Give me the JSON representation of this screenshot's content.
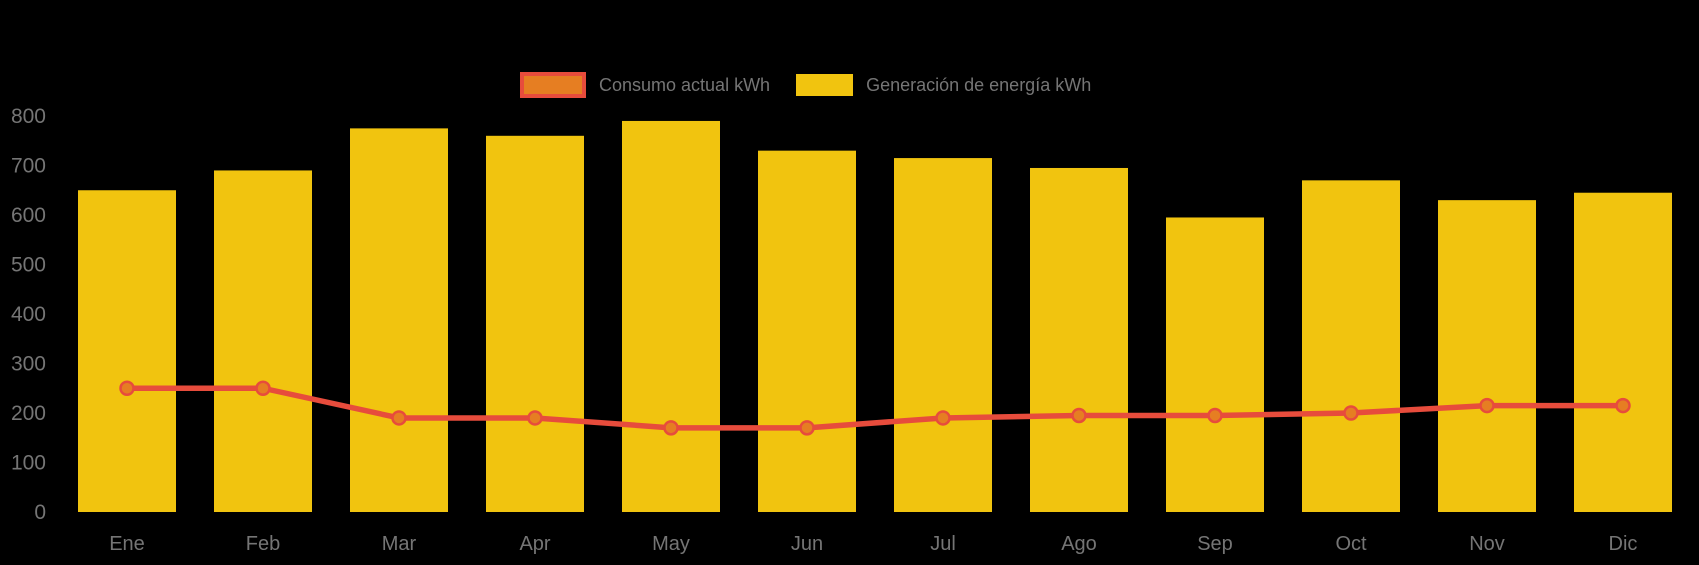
{
  "legend": {
    "consumo_label": "Consumo actual kWh",
    "generacion_label": "Generación de energía kWh"
  },
  "colors": {
    "bar_fill": "#f1c40f",
    "line_stroke": "#e74c3c",
    "marker_fill": "#e67e22",
    "marker_stroke": "#e74c3c",
    "axis_text": "#757575",
    "background": "#000000"
  },
  "chart_data": {
    "type": "bar+line",
    "title": "",
    "xlabel": "",
    "ylabel": "",
    "categories": [
      "Ene",
      "Feb",
      "Mar",
      "Apr",
      "May",
      "Jun",
      "Jul",
      "Ago",
      "Sep",
      "Oct",
      "Nov",
      "Dic"
    ],
    "series": [
      {
        "name": "Consumo actual kWh",
        "type": "line",
        "color": "#e74c3c",
        "marker_color": "#e67e22",
        "values": [
          250,
          250,
          190,
          190,
          170,
          170,
          190,
          195,
          195,
          200,
          215,
          215
        ]
      },
      {
        "name": "Generación de energía kWh",
        "type": "bar",
        "color": "#f1c40f",
        "values": [
          650,
          690,
          775,
          760,
          790,
          730,
          715,
          695,
          595,
          670,
          630,
          645
        ]
      }
    ],
    "ylim": [
      0,
      800
    ],
    "ytick_step": 100,
    "yticks": [
      0,
      100,
      200,
      300,
      400,
      500,
      600,
      700,
      800
    ],
    "grid": false,
    "legend_position": "top-center"
  }
}
